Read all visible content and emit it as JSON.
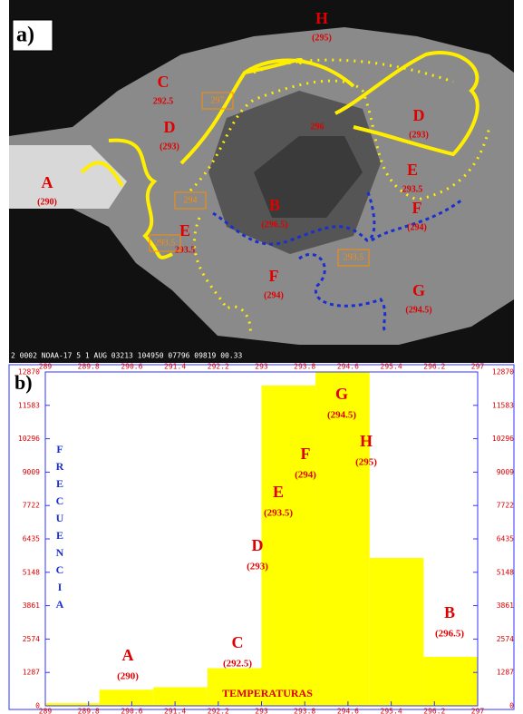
{
  "panel_a": {
    "label": "a)",
    "regions": [
      {
        "letter": "H",
        "temp": "(295)"
      },
      {
        "letter": "C",
        "temp": "292.5"
      },
      {
        "letter": "D",
        "temp": "(293)"
      },
      {
        "letter": "A",
        "temp": "(290)"
      },
      {
        "letter": "E",
        "temp": "293.5"
      },
      {
        "letter": "B",
        "temp": "(296.5)"
      },
      {
        "letter": "F",
        "temp": "(294)"
      },
      {
        "letter": "G",
        "temp": "(294.5)"
      },
      {
        "letter": "D",
        "temp": "(293)"
      },
      {
        "letter": "E",
        "temp": "293.5"
      },
      {
        "letter": "F",
        "temp": "(294)"
      }
    ],
    "boxes": [
      "297",
      "294",
      "293.5",
      "293.5"
    ],
    "marks": [
      "296"
    ],
    "footer": "2 0002 NOAA-17   5  1 AUG 03213 104950 07796 09819 00.33"
  },
  "chart_data": {
    "type": "histogram",
    "title": "b)",
    "bins": [
      289,
      290,
      291,
      292,
      293,
      294,
      295,
      296,
      297
    ],
    "counts": [
      100,
      620,
      720,
      1450,
      12350,
      12870,
      5700,
      1890
    ],
    "color": "#ffff00",
    "xlim": [
      289,
      297
    ],
    "xticks": [
      289,
      289.8,
      290.6,
      291.4,
      292.2,
      293,
      293.8,
      294.6,
      295.4,
      296.2,
      297
    ],
    "ylim": [
      0,
      12870
    ],
    "yticks": [
      0,
      1287,
      2574,
      3861,
      5148,
      6435,
      7722,
      9009,
      10296,
      11583,
      12870
    ],
    "xlabel": "TEMPERATURAS",
    "ylabel": [
      "F",
      "R",
      "E",
      "C",
      "U",
      "E",
      "N",
      "C",
      "I",
      "A"
    ],
    "annotations": [
      {
        "letter": "A",
        "temp": "(290)"
      },
      {
        "letter": "C",
        "temp": "(292.5)"
      },
      {
        "letter": "D",
        "temp": "(293)"
      },
      {
        "letter": "E",
        "temp": "(293.5)"
      },
      {
        "letter": "F",
        "temp": "(294)"
      },
      {
        "letter": "G",
        "temp": "(294.5)"
      },
      {
        "letter": "H",
        "temp": "(295)"
      },
      {
        "letter": "B",
        "temp": "(296.5)"
      }
    ]
  }
}
